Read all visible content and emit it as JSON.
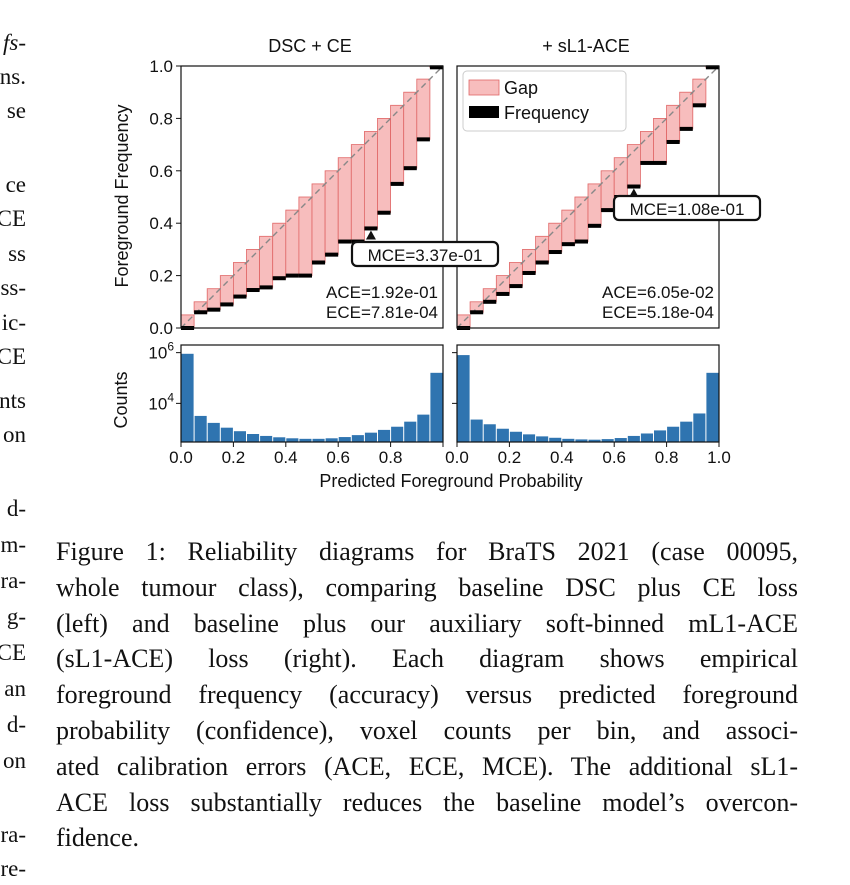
{
  "left_column_fragments": [
    {
      "text": "fs-",
      "italic": true
    },
    {
      "text": "ns."
    },
    {
      "text": "se"
    },
    {
      "text": "ce"
    },
    {
      "text": "CE"
    },
    {
      "text": "ss"
    },
    {
      "text": "ss-"
    },
    {
      "text": "ic-"
    },
    {
      "text": "CE"
    },
    {
      "text": "nts"
    },
    {
      "text": "on"
    },
    {
      "text": "d-"
    },
    {
      "text": "m-"
    },
    {
      "text": "ra-"
    },
    {
      "text": "g-"
    },
    {
      "text": "CE"
    },
    {
      "text": "an"
    },
    {
      "text": "d-"
    },
    {
      "text": "on"
    },
    {
      "text": "ra-"
    },
    {
      "text": "re-"
    }
  ],
  "figure": {
    "xlabel": "Predicted Foreground Probability",
    "ylabel_top": "Foreground Frequency",
    "ylabel_bottom": "Counts",
    "colors": {
      "gap": "#f7bdbd",
      "gap_edge": "#e06666",
      "frequency": "#000000",
      "counts": "#2f74b0",
      "diagonal": "#888888"
    }
  },
  "chart_data": [
    {
      "type": "bar",
      "title": "DSC + CE",
      "xlabel": "Predicted Foreground Probability",
      "ylabel": "Foreground Frequency",
      "xlim": [
        0,
        1
      ],
      "ylim": [
        0,
        1
      ],
      "xticks": [
        "0.0",
        "0.2",
        "0.4",
        "0.6",
        "0.8"
      ],
      "yticks": [
        "0.0",
        "0.2",
        "0.4",
        "0.6",
        "0.8",
        "1.0"
      ],
      "legend": [],
      "bin_centers": [
        0.025,
        0.075,
        0.125,
        0.175,
        0.225,
        0.275,
        0.325,
        0.375,
        0.425,
        0.475,
        0.525,
        0.575,
        0.625,
        0.675,
        0.725,
        0.775,
        0.825,
        0.875,
        0.925,
        0.975
      ],
      "series": [
        {
          "name": "Frequency",
          "values": [
            0.0,
            0.06,
            0.07,
            0.09,
            0.12,
            0.145,
            0.155,
            0.19,
            0.2,
            0.2,
            0.25,
            0.28,
            0.33,
            0.33,
            0.38,
            0.44,
            0.55,
            0.61,
            0.72,
            0.995
          ]
        }
      ],
      "annotations": {
        "ace": "ACE=1.92e-01",
        "ece": "ECE=7.81e-04",
        "mce": "MCE=3.37e-01",
        "mce_bin": 0.725
      },
      "counts": {
        "ylabel": "Counts",
        "scale": "log",
        "yticks": [
          "10^6",
          "10^4"
        ],
        "values": [
          900000,
          3200,
          1700,
          1100,
          800,
          620,
          520,
          460,
          420,
          400,
          400,
          420,
          470,
          560,
          700,
          900,
          1200,
          1900,
          3600,
          160000
        ]
      }
    },
    {
      "type": "bar",
      "title": "+ sL1-ACE",
      "xlabel": "Predicted Foreground Probability",
      "ylabel": "Foreground Frequency",
      "xlim": [
        0,
        1
      ],
      "ylim": [
        0,
        1
      ],
      "xticks": [
        "0.0",
        "0.2",
        "0.4",
        "0.6",
        "0.8",
        "1.0"
      ],
      "yticks": [],
      "legend": [
        "Gap",
        "Frequency"
      ],
      "legend_position": "top-left",
      "bin_centers": [
        0.025,
        0.075,
        0.125,
        0.175,
        0.225,
        0.275,
        0.325,
        0.375,
        0.425,
        0.475,
        0.525,
        0.575,
        0.625,
        0.675,
        0.725,
        0.775,
        0.825,
        0.875,
        0.925,
        0.975
      ],
      "series": [
        {
          "name": "Frequency",
          "values": [
            0.0,
            0.06,
            0.1,
            0.13,
            0.16,
            0.21,
            0.25,
            0.29,
            0.32,
            0.33,
            0.39,
            0.45,
            0.5,
            0.54,
            0.63,
            0.63,
            0.71,
            0.76,
            0.85,
            0.995
          ]
        }
      ],
      "annotations": {
        "ace": "ACE=6.05e-02",
        "ece": "ECE=5.18e-04",
        "mce": "MCE=1.08e-01",
        "mce_bin": 0.675
      },
      "counts": {
        "ylabel": "Counts",
        "scale": "log",
        "yticks": [],
        "values": [
          800000,
          2300,
          1500,
          1000,
          760,
          600,
          500,
          440,
          400,
          380,
          370,
          390,
          430,
          520,
          650,
          860,
          1200,
          1900,
          4000,
          160000
        ]
      }
    }
  ],
  "caption": {
    "lines": [
      "Figure 1: Reliability diagrams for BraTS 2021 (case 00095,",
      "whole tumour class), comparing baseline DSC plus CE loss",
      "(left) and baseline plus our auxiliary soft-binned mL1-ACE",
      "(sL1-ACE) loss (right).  Each diagram shows empirical",
      "foreground frequency (accuracy) versus predicted foreground",
      "probability (confidence), voxel counts per bin, and associ-",
      "ated calibration errors (ACE, ECE, MCE). The additional sL1-",
      "ACE loss substantially reduces the baseline model’s overcon-",
      "fidence."
    ]
  }
}
